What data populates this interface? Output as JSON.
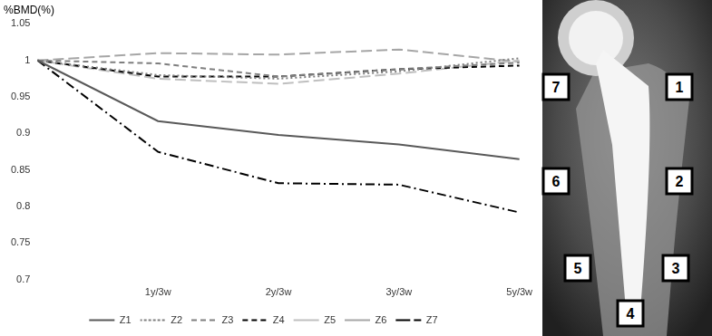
{
  "chart_data": {
    "type": "line",
    "y_label": "%BMD(%)",
    "categories": [
      null,
      "1y/3w",
      "2y/3w",
      "3y/3w",
      "5y/3w"
    ],
    "series": [
      {
        "name": "Z1",
        "color": "#595959",
        "line_style": "solid",
        "values": [
          1,
          0.917,
          0.898,
          0.885,
          0.865
        ]
      },
      {
        "name": "Z2",
        "color": "#7f7f7f",
        "line_style": "dotted",
        "values": [
          1,
          0.98,
          0.975,
          0.985,
          1.003
        ]
      },
      {
        "name": "Z3",
        "color": "#7f7f7f",
        "line_style": "dashed",
        "values": [
          1,
          0.996,
          0.978,
          0.988,
          0.997
        ]
      },
      {
        "name": "Z4",
        "color": "#000000",
        "line_style": "dashed",
        "values": [
          1,
          0.978,
          0.978,
          0.988,
          0.993
        ]
      },
      {
        "name": "Z5",
        "color": "#bfbfbf",
        "line_style": "long_dash",
        "values": [
          1,
          0.975,
          0.968,
          0.982,
          1.0
        ]
      },
      {
        "name": "Z6",
        "color": "#a6a6a6",
        "line_style": "long_dash",
        "values": [
          1,
          1.01,
          1.008,
          1.015,
          0.998
        ]
      },
      {
        "name": "Z7",
        "color": "#000000",
        "line_style": "dash_dot",
        "values": [
          1,
          0.875,
          0.832,
          0.83,
          0.792
        ]
      }
    ],
    "ylim": [
      0.7,
      1.05
    ],
    "yticks": [
      0.7,
      0.75,
      0.8,
      0.85,
      0.9,
      0.95,
      1,
      1.05
    ],
    "grid": false,
    "legend": "bottom"
  },
  "radiograph": {
    "zone_labels": [
      "1",
      "2",
      "3",
      "4",
      "5",
      "6",
      "7"
    ]
  }
}
